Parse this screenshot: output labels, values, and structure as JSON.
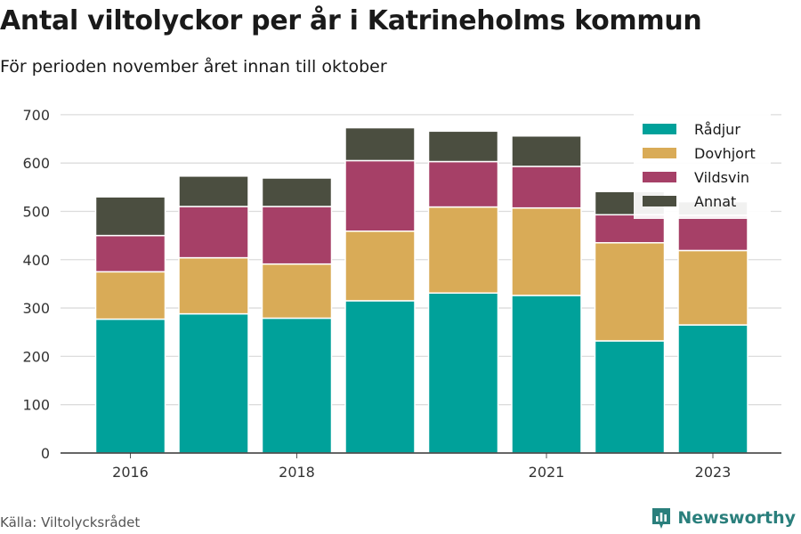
{
  "header": {
    "title": "Antal viltolyckor per år i Katrineholms kommun",
    "subtitle": "För perioden november året innan till oktober"
  },
  "footer": {
    "source": "Källa: Viltolycksrådet",
    "brand": "Newsworthy"
  },
  "chart_data": {
    "type": "bar",
    "stacked": true,
    "x": [
      2016,
      2017,
      2018,
      2019,
      2020,
      2021,
      2022,
      2023
    ],
    "x_tick_labels": [
      "2016",
      "",
      "2018",
      "",
      "",
      "2021",
      "",
      "2023"
    ],
    "y_ticks": [
      0,
      100,
      200,
      300,
      400,
      500,
      600,
      700
    ],
    "ylim": [
      0,
      720
    ],
    "grid": true,
    "legend_position": "top-right",
    "series": [
      {
        "name": "Rådjur",
        "color": "#00a19a",
        "values": [
          277,
          288,
          279,
          315,
          331,
          326,
          232,
          265
        ]
      },
      {
        "name": "Dovhjort",
        "color": "#d9ab57",
        "values": [
          98,
          116,
          112,
          144,
          178,
          181,
          203,
          154
        ]
      },
      {
        "name": "Vildsvin",
        "color": "#a64067",
        "values": [
          75,
          106,
          119,
          146,
          94,
          86,
          58,
          73
        ]
      },
      {
        "name": "Annat",
        "color": "#4b4e40",
        "values": [
          80,
          63,
          59,
          68,
          63,
          63,
          48,
          28
        ]
      }
    ]
  }
}
